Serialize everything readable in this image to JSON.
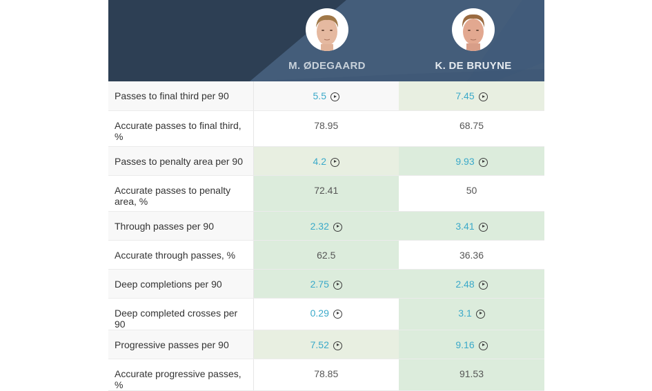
{
  "header": {
    "players": [
      {
        "name": "M. ØDEGAARD",
        "avatar": "player-photo-odegaard"
      },
      {
        "name": "K. DE BRUYNE",
        "avatar": "player-photo-de-bruyne"
      }
    ],
    "colors": {
      "dark": "#2d3f54",
      "mid": "#445d7a",
      "light": "#4c6a8b"
    }
  },
  "colors": {
    "link_value": "#3aa9c9",
    "plain_value": "#555555",
    "label_alt_bg": "#f8f8f8",
    "pale_green": "#e8efe1",
    "green": "#dcecdc",
    "white": "#ffffff"
  },
  "rows": [
    {
      "label": "Passes to final third per 90",
      "values": [
        "5.5",
        "7.45"
      ],
      "video": true,
      "tall": false,
      "label_bg": "#f8f8f8",
      "bgs": [
        "#f8f8f8",
        "#e8efe1"
      ]
    },
    {
      "label": "Accurate passes to final third, %",
      "values": [
        "78.95",
        "68.75"
      ],
      "video": false,
      "tall": true,
      "label_bg": "#ffffff",
      "bgs": [
        "#ffffff",
        "#ffffff"
      ]
    },
    {
      "label": "Passes to penalty area per 90",
      "values": [
        "4.2",
        "9.93"
      ],
      "video": true,
      "tall": false,
      "label_bg": "#f8f8f8",
      "bgs": [
        "#e8efe1",
        "#dcecdc"
      ]
    },
    {
      "label": "Accurate passes to penalty area, %",
      "values": [
        "72.41",
        "50"
      ],
      "video": false,
      "tall": true,
      "label_bg": "#ffffff",
      "bgs": [
        "#dcecdc",
        "#ffffff"
      ]
    },
    {
      "label": "Through passes per 90",
      "values": [
        "2.32",
        "3.41"
      ],
      "video": true,
      "tall": false,
      "label_bg": "#f8f8f8",
      "bgs": [
        "#dcecdc",
        "#dcecdc"
      ]
    },
    {
      "label": "Accurate through passes, %",
      "values": [
        "62.5",
        "36.36"
      ],
      "video": false,
      "tall": false,
      "label_bg": "#ffffff",
      "bgs": [
        "#dcecdc",
        "#ffffff"
      ]
    },
    {
      "label": "Deep completions per 90",
      "values": [
        "2.75",
        "2.48"
      ],
      "video": true,
      "tall": false,
      "label_bg": "#f8f8f8",
      "bgs": [
        "#dcecdc",
        "#dcecdc"
      ]
    },
    {
      "label": "Deep completed crosses per 90",
      "values": [
        "0.29",
        "3.1"
      ],
      "video": true,
      "tall": false,
      "label_bg": "#ffffff",
      "bgs": [
        "#ffffff",
        "#dcecdc"
      ]
    },
    {
      "label": "Progressive passes per 90",
      "values": [
        "7.52",
        "9.16"
      ],
      "video": true,
      "tall": false,
      "label_bg": "#f8f8f8",
      "bgs": [
        "#e8efe1",
        "#dcecdc"
      ]
    },
    {
      "label": "Accurate progressive passes, %",
      "values": [
        "78.85",
        "91.53"
      ],
      "video": false,
      "tall": false,
      "label_bg": "#ffffff",
      "bgs": [
        "#ffffff",
        "#dcecdc"
      ]
    }
  ],
  "icons": {
    "video": "play-circle-icon"
  }
}
